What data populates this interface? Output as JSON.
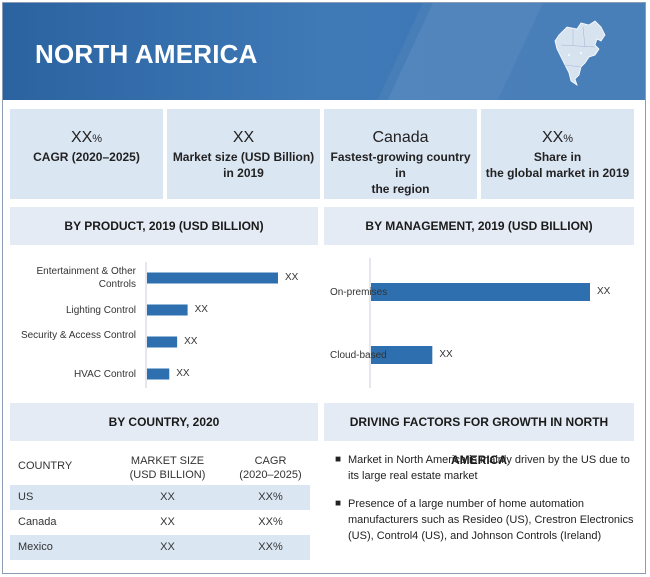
{
  "header": {
    "title": "NORTH AMERICA",
    "map_icon": "north-america-map-icon"
  },
  "kpis": [
    {
      "value": "XX",
      "unit": "%",
      "label": "CAGR (2020–2025)"
    },
    {
      "value": "XX",
      "unit": "",
      "label": "Market size (USD Billion)\nin 2019"
    },
    {
      "value": "Canada",
      "unit": "",
      "label": "Fastest-growing country in\nthe region"
    },
    {
      "value": "XX",
      "unit": "%",
      "label": "Share in\nthe global market in 2019"
    }
  ],
  "sections": {
    "by_product": "BY PRODUCT, 2019 (USD BILLION)",
    "by_management": "BY MANAGEMENT, 2019 (USD BILLION)",
    "by_country": "BY COUNTRY, 2020",
    "drivers": "DRIVING FACTORS FOR GROWTH IN NORTH AMERICA"
  },
  "chart_data": [
    {
      "type": "bar",
      "orientation": "horizontal",
      "title": "BY PRODUCT, 2019 (USD BILLION)",
      "categories": [
        "Entertainment & Other Controls",
        "Lighting Control",
        "Security & Access Control",
        "HVAC Control"
      ],
      "values": [
        100,
        31,
        23,
        17
      ],
      "data_labels": [
        "XX",
        "XX",
        "XX",
        "XX"
      ],
      "bar_color": "#2e6fb0"
    },
    {
      "type": "bar",
      "orientation": "horizontal",
      "title": "BY MANAGEMENT, 2019 (USD BILLION)",
      "categories": [
        "On-premises",
        "Cloud-based"
      ],
      "values": [
        100,
        28
      ],
      "data_labels": [
        "XX",
        "XX"
      ],
      "bar_color": "#2e6fb0"
    }
  ],
  "table": {
    "headers": [
      "COUNTRY",
      "MARKET SIZE\n(USD BILLION)",
      "CAGR\n(2020–2025)"
    ],
    "rows": [
      [
        "US",
        "XX",
        "XX%"
      ],
      [
        "Canada",
        "XX",
        "XX%"
      ],
      [
        "Mexico",
        "XX",
        "XX%"
      ]
    ]
  },
  "drivers": [
    "Market in North America is mainly driven by the US due to its large real estate market",
    "Presence of a large number of home automation manufacturers such as Resideo (US), Crestron Electronics (US), Control4 (US), and Johnson Controls (Ireland)"
  ],
  "colors": {
    "header_blue": "#3a73b0",
    "panel_light": "#dbe6f3",
    "section_head": "#e4ebf4",
    "bar": "#2e6fb0"
  }
}
